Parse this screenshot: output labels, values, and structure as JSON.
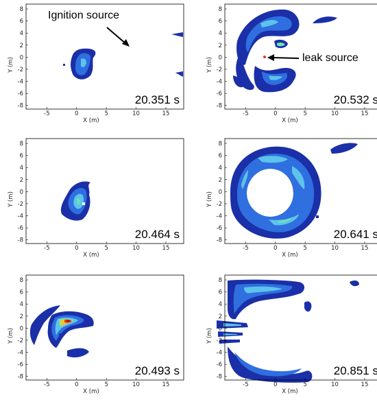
{
  "axes": {
    "x_label": "X (m)",
    "y_label": "Y (m)",
    "x_ticks": [
      "-5",
      "0",
      "5",
      "10",
      "15"
    ],
    "y_ticks": [
      "8",
      "6",
      "4",
      "2",
      "0",
      "-2",
      "-4",
      "-6",
      "-8"
    ]
  },
  "panels": [
    {
      "id": "p1",
      "time": "20.351 s"
    },
    {
      "id": "p2",
      "time": "20.532 s"
    },
    {
      "id": "p3",
      "time": "20.464 s"
    },
    {
      "id": "p4",
      "time": "20.641 s"
    },
    {
      "id": "p5",
      "time": "20.493 s"
    },
    {
      "id": "p6",
      "time": "20.851 s"
    }
  ],
  "annotations": {
    "ignition": "Ignition source",
    "leak": "leak source"
  },
  "colors": {
    "level_1": "#1a2fa8",
    "level_2": "#2f6fe0",
    "level_3": "#5ec3ea",
    "level_4": "#6fe3b4",
    "level_5": "#f4c430",
    "level_6": "#e63c1c",
    "level_7": "#b01010"
  }
}
